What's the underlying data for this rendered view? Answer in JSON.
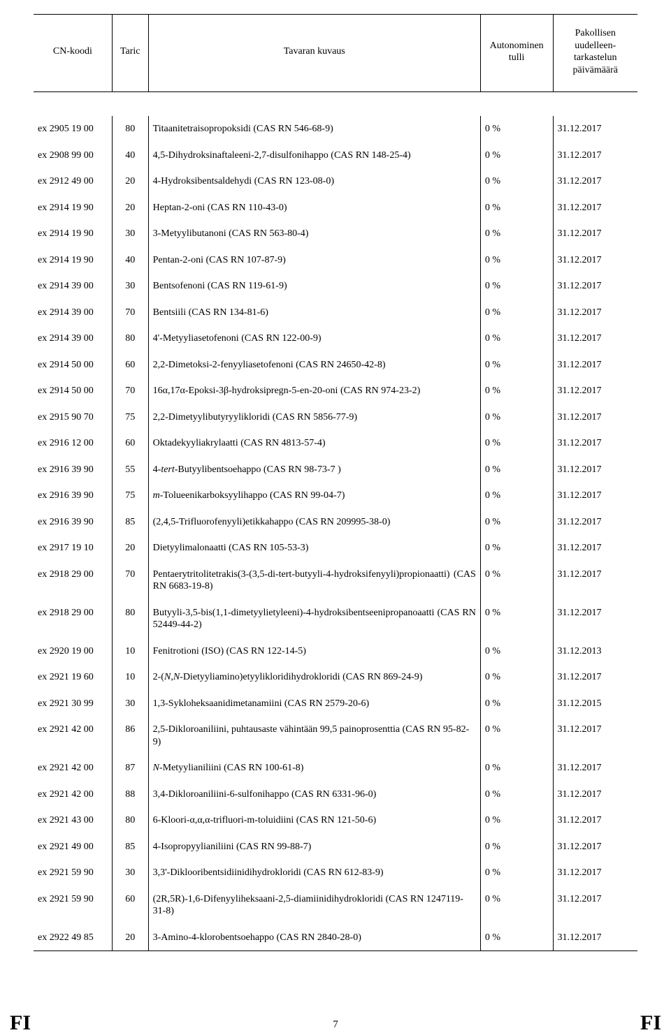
{
  "table": {
    "columns": {
      "cn": "CN-koodi",
      "taric": "Taric",
      "desc": "Tavaran kuvaus",
      "duty": "Autonominen tulli",
      "date": "Pakollisen uudelleen-tarkastelun päivämäärä"
    },
    "rows": [
      {
        "cn": "ex 2905 19 00",
        "taric": "80",
        "desc": "Titaanitetraisopropoksidi (CAS RN 546-68-9)",
        "duty": "0 %",
        "date": "31.12.2017"
      },
      {
        "cn": "ex 2908 99 00",
        "taric": "40",
        "desc": "4,5-Dihydroksinaftaleeni-2,7-disulfonihappo (CAS RN 148-25-4)",
        "duty": "0 %",
        "date": "31.12.2017"
      },
      {
        "cn": "ex 2912 49 00",
        "taric": "20",
        "desc": "4-Hydroksibentsaldehydi (CAS RN 123-08-0)",
        "duty": "0 %",
        "date": "31.12.2017"
      },
      {
        "cn": "ex 2914 19 90",
        "taric": "20",
        "desc": "Heptan-2-oni (CAS RN 110-43-0)",
        "duty": "0 %",
        "date": "31.12.2017"
      },
      {
        "cn": "ex 2914 19 90",
        "taric": "30",
        "desc": "3-Metyylibutanoni (CAS RN 563-80-4)",
        "duty": "0 %",
        "date": "31.12.2017"
      },
      {
        "cn": "ex 2914 19 90",
        "taric": "40",
        "desc": "Pentan-2-oni (CAS RN 107-87-9)",
        "duty": "0 %",
        "date": "31.12.2017"
      },
      {
        "cn": "ex 2914 39 00",
        "taric": "30",
        "desc": "Bentsofenoni (CAS RN 119-61-9)",
        "duty": "0 %",
        "date": "31.12.2017"
      },
      {
        "cn": "ex 2914 39 00",
        "taric": "70",
        "desc": "Bentsiili (CAS RN 134-81-6)",
        "duty": "0 %",
        "date": "31.12.2017"
      },
      {
        "cn": "ex 2914 39 00",
        "taric": "80",
        "desc": "4'-Metyyliasetofenoni (CAS RN 122-00-9)",
        "duty": "0 %",
        "date": "31.12.2017"
      },
      {
        "cn": "ex 2914 50 00",
        "taric": "60",
        "desc": "2,2-Dimetoksi-2-fenyyliasetofenoni (CAS RN 24650-42-8)",
        "duty": "0 %",
        "date": "31.12.2017"
      },
      {
        "cn": "ex 2914 50 00",
        "taric": "70",
        "desc": "16α,17α-Epoksi-3β-hydroksipregn-5-en-20-oni (CAS RN 974-23-2)",
        "duty": "0 %",
        "date": "31.12.2017"
      },
      {
        "cn": "ex 2915 90 70",
        "taric": "75",
        "desc": "2,2-Dimetyylibutyryylikloridi (CAS RN 5856-77-9)",
        "duty": "0 %",
        "date": "31.12.2017"
      },
      {
        "cn": "ex 2916 12 00",
        "taric": "60",
        "desc": "Oktadekyyliakrylaatti (CAS RN 4813-57-4)",
        "duty": "0 %",
        "date": "31.12.2017"
      },
      {
        "cn": "ex 2916 39 90",
        "taric": "55",
        "desc_html": "4-<span class='ital'>tert</span>-Butyylibentsoehappo (CAS RN 98-73-7 )",
        "duty": "0 %",
        "date": "31.12.2017"
      },
      {
        "cn": "ex 2916 39 90",
        "taric": "75",
        "desc_html": "<span class='ital'>m</span>-Tolueenikarboksyylihappo (CAS RN 99-04-7)",
        "duty": "0 %",
        "date": "31.12.2017"
      },
      {
        "cn": "ex 2916 39 90",
        "taric": "85",
        "desc": "(2,4,5-Trifluorofenyyli)etikkahappo (CAS RN 209995-38-0)",
        "duty": "0 %",
        "date": "31.12.2017"
      },
      {
        "cn": "ex 2917 19 10",
        "taric": "20",
        "desc": "Dietyylimalonaatti (CAS RN 105-53-3)",
        "duty": "0 %",
        "date": "31.12.2017"
      },
      {
        "cn": "ex 2918 29 00",
        "taric": "70",
        "desc": "Pentaerytritolitetrakis(3-(3,5-di-tert-butyyli-4-hydroksifenyyli)propionaatti) (CAS RN 6683-19-8)",
        "justify": true,
        "duty": "0 %",
        "date": "31.12.2017"
      },
      {
        "cn": "ex 2918 29 00",
        "taric": "80",
        "desc": "Butyyli-3,5-bis(1,1-dimetyylietyleeni)-4-hydroksibentseenipropanoaatti (CAS RN 52449-44-2)",
        "justify": true,
        "duty": "0 %",
        "date": "31.12.2017"
      },
      {
        "cn": "ex 2920 19 00",
        "taric": "10",
        "desc": "Fenitrotioni (ISO) (CAS RN 122-14-5)",
        "duty": "0 %",
        "date": "31.12.2013"
      },
      {
        "cn": "ex 2921 19 60",
        "taric": "10",
        "desc_html": "2-(<span class='ital'>N</span>,<span class='ital'>N</span>-Dietyyliamino)etyylikloridihydrokloridi (CAS RN 869-24-9)",
        "duty": "0 %",
        "date": "31.12.2017"
      },
      {
        "cn": "ex 2921 30 99",
        "taric": "30",
        "desc": "1,3-Sykloheksaanidimetanamiini (CAS RN 2579-20-6)",
        "duty": "0 %",
        "date": "31.12.2015"
      },
      {
        "cn": "ex 2921 42 00",
        "taric": "86",
        "desc": "2,5-Dikloroaniliini, puhtausaste vähintään 99,5 painoprosenttia (CAS RN 95-82-9)",
        "duty": "0 %",
        "date": "31.12.2017"
      },
      {
        "cn": "ex 2921 42 00",
        "taric": "87",
        "desc_html": "<span class='ital'>N</span>-Metyylianiliini (CAS RN 100-61-8)",
        "duty": "0 %",
        "date": "31.12.2017"
      },
      {
        "cn": "ex 2921 42 00",
        "taric": "88",
        "desc": "3,4-Dikloroaniliini-6-sulfonihappo (CAS RN 6331-96-0)",
        "duty": "0 %",
        "date": "31.12.2017"
      },
      {
        "cn": "ex 2921 43 00",
        "taric": "80",
        "desc": "6-Kloori-α,α,α-trifluori-m-toluidiini (CAS RN 121-50-6)",
        "duty": "0 %",
        "date": "31.12.2017"
      },
      {
        "cn": "ex 2921 49 00",
        "taric": "85",
        "desc": "4-Isopropyylianiliini (CAS RN 99-88-7)",
        "duty": "0 %",
        "date": "31.12.2017"
      },
      {
        "cn": "ex 2921 59 90",
        "taric": "30",
        "desc": "3,3'-Diklooribentsidiinidihydrokloridi (CAS RN 612-83-9)",
        "duty": "0 %",
        "date": "31.12.2017"
      },
      {
        "cn": "ex 2921 59 90",
        "taric": "60",
        "desc": "(2R,5R)-1,6-Difenyyliheksaani-2,5-diamiinidihydrokloridi (CAS RN 1247119-31-8)",
        "duty": "0 %",
        "date": "31.12.2017"
      },
      {
        "cn": "ex 2922 49 85",
        "taric": "20",
        "desc": "3-Amino-4-klorobentsoehappo (CAS RN 2840-28-0)",
        "duty": "0 %",
        "date": "31.12.2017"
      }
    ]
  },
  "footer": {
    "left": "FI",
    "page": "7",
    "right": "FI"
  }
}
